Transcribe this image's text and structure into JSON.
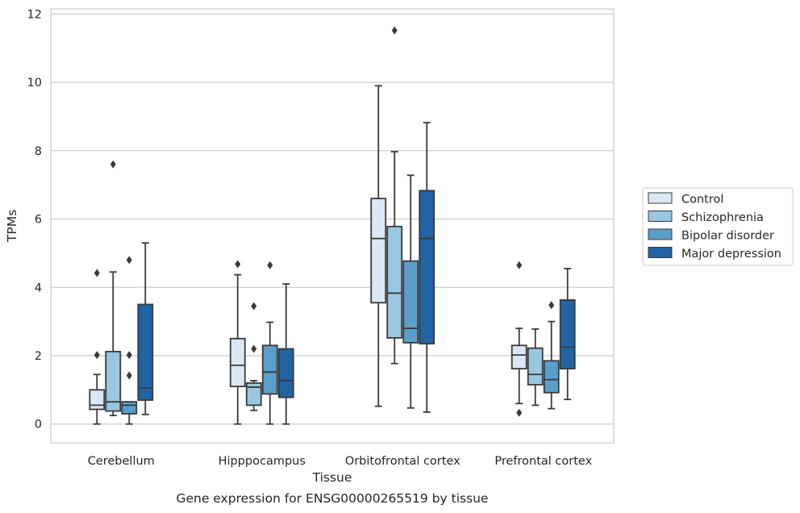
{
  "caption": "Gene expression for ENSG00000265519 by tissue",
  "chart_data": {
    "type": "box",
    "xlabel": "Tissue",
    "ylabel": "TPMs",
    "ylim": [
      -0.55,
      12.15
    ],
    "yticks": [
      0,
      2,
      4,
      6,
      8,
      10,
      12
    ],
    "grid": true,
    "legend_position": "right",
    "categories": [
      "Cerebellum",
      "Hipppocampus",
      "Orbitofrontal cortex",
      "Prefrontal cortex"
    ],
    "series": [
      {
        "name": "Control",
        "color": "#dae8f5",
        "boxes": [
          {
            "whisker_low": 0.0,
            "q1": 0.43,
            "median": 0.55,
            "q3": 1.0,
            "whisker_high": 1.45,
            "outliers": [
              2.02,
              4.42
            ]
          },
          {
            "whisker_low": 0.0,
            "q1": 1.1,
            "median": 1.72,
            "q3": 2.5,
            "whisker_high": 4.37,
            "outliers": [
              4.68
            ]
          },
          {
            "whisker_low": 0.52,
            "q1": 3.55,
            "median": 5.43,
            "q3": 6.6,
            "whisker_high": 9.9,
            "outliers": []
          },
          {
            "whisker_low": 0.6,
            "q1": 1.62,
            "median": 2.02,
            "q3": 2.3,
            "whisker_high": 2.8,
            "outliers": [
              0.33,
              4.65
            ]
          }
        ]
      },
      {
        "name": "Schizophrenia",
        "color": "#9ac7e0",
        "boxes": [
          {
            "whisker_low": 0.25,
            "q1": 0.38,
            "median": 0.65,
            "q3": 2.12,
            "whisker_high": 4.45,
            "outliers": [
              7.6
            ]
          },
          {
            "whisker_low": 0.4,
            "q1": 0.55,
            "median": 1.08,
            "q3": 1.2,
            "whisker_high": 1.27,
            "outliers": [
              2.2,
              3.45
            ]
          },
          {
            "whisker_low": 1.77,
            "q1": 2.52,
            "median": 3.83,
            "q3": 5.78,
            "whisker_high": 7.97,
            "outliers": [
              11.52
            ]
          },
          {
            "whisker_low": 0.55,
            "q1": 1.15,
            "median": 1.45,
            "q3": 2.22,
            "whisker_high": 2.78,
            "outliers": []
          }
        ]
      },
      {
        "name": "Bipolar disorder",
        "color": "#5a9fcb",
        "boxes": [
          {
            "whisker_low": 0.0,
            "q1": 0.3,
            "median": 0.55,
            "q3": 0.65,
            "whisker_high": 0.65,
            "outliers": [
              1.42,
              2.02,
              4.8
            ]
          },
          {
            "whisker_low": 0.0,
            "q1": 0.88,
            "median": 1.52,
            "q3": 2.3,
            "whisker_high": 2.98,
            "outliers": [
              4.65
            ]
          },
          {
            "whisker_low": 0.47,
            "q1": 2.38,
            "median": 2.8,
            "q3": 4.77,
            "whisker_high": 7.28,
            "outliers": []
          },
          {
            "whisker_low": 0.45,
            "q1": 0.92,
            "median": 1.3,
            "q3": 1.85,
            "whisker_high": 3.0,
            "outliers": [
              3.48
            ]
          }
        ]
      },
      {
        "name": "Major depression",
        "color": "#2163a3",
        "boxes": [
          {
            "whisker_low": 0.28,
            "q1": 0.7,
            "median": 1.05,
            "q3": 3.5,
            "whisker_high": 5.3,
            "outliers": []
          },
          {
            "whisker_low": 0.0,
            "q1": 0.78,
            "median": 1.27,
            "q3": 2.2,
            "whisker_high": 4.1,
            "outliers": []
          },
          {
            "whisker_low": 0.35,
            "q1": 2.35,
            "median": 5.43,
            "q3": 6.83,
            "whisker_high": 8.82,
            "outliers": []
          },
          {
            "whisker_low": 0.72,
            "q1": 1.62,
            "median": 2.25,
            "q3": 3.63,
            "whisker_high": 4.55,
            "outliers": []
          }
        ]
      }
    ]
  }
}
